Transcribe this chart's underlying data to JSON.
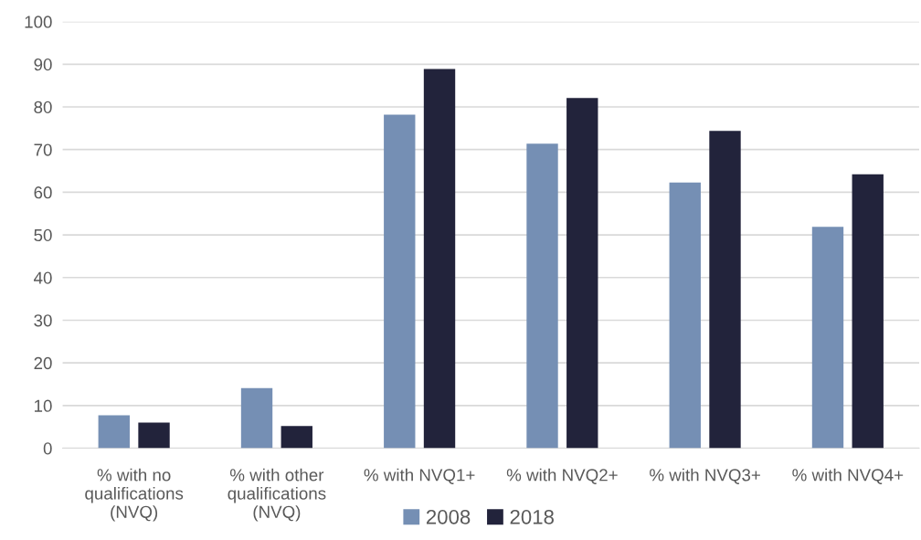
{
  "chart_data": {
    "type": "bar",
    "categories": [
      "% with no\nqualifications\n(NVQ)",
      "% with other\nqualifications\n(NVQ)",
      "% with NVQ1+",
      "% with NVQ2+",
      "% with NVQ3+",
      "% with NVQ4+"
    ],
    "series": [
      {
        "name": "2008",
        "color": "#758fb4",
        "values": [
          7.7,
          14.1,
          78.2,
          71.4,
          62.3,
          51.9
        ]
      },
      {
        "name": "2018",
        "color": "#22233b",
        "values": [
          6.0,
          5.2,
          88.9,
          82.1,
          74.4,
          64.2
        ]
      }
    ],
    "ylim": [
      0,
      100
    ],
    "yticks": [
      0,
      10,
      20,
      30,
      40,
      50,
      60,
      70,
      80,
      90,
      100
    ],
    "grid": "y",
    "legend": "bottom"
  }
}
